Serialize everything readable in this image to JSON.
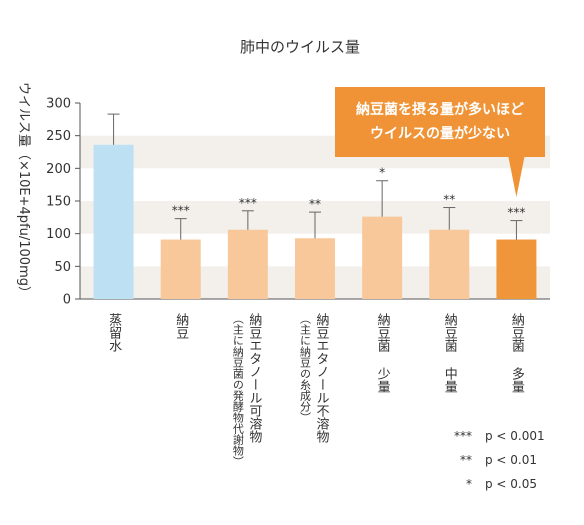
{
  "chart_data": {
    "type": "bar",
    "title": "肺中のウイルス量",
    "ylabel": "ウイルス量（×10E+4pfu/100mg）",
    "ylim": [
      0,
      300
    ],
    "yticks": [
      0,
      50,
      100,
      150,
      200,
      250,
      300
    ],
    "categories": [
      {
        "main": "蒸留水",
        "sub": ""
      },
      {
        "main": "納豆",
        "sub": ""
      },
      {
        "main": "納豆エタノール可溶物",
        "sub": "（主に納豆菌の発酵物代謝物）"
      },
      {
        "main": "納豆エタノール不溶物",
        "sub": "（主に納豆の糸成分）"
      },
      {
        "main": "納豆菌 少量",
        "sub": ""
      },
      {
        "main": "納豆菌 中量",
        "sub": ""
      },
      {
        "main": "納豆菌 多量",
        "sub": ""
      }
    ],
    "values": [
      236,
      91,
      106,
      93,
      126,
      106,
      91
    ],
    "errors": [
      47,
      32,
      29,
      40,
      55,
      34,
      29
    ],
    "significance": [
      "",
      "***",
      "***",
      "**",
      "*",
      "**",
      "***"
    ],
    "colors": [
      "#bde0f2",
      "#f8c89a",
      "#f8c89a",
      "#f8c89a",
      "#f8c89a",
      "#f8c89a",
      "#f0963a"
    ],
    "band_color": "#f3efea",
    "callout": {
      "lines": [
        "納豆菌を摂る量が多いほど",
        "ウイルスの量が少ない"
      ],
      "color": "#ef9336"
    },
    "legend": [
      {
        "mark": "***",
        "text": "p < 0.001"
      },
      {
        "mark": "**",
        "text": "p < 0.01"
      },
      {
        "mark": "*",
        "text": "p < 0.05"
      }
    ]
  }
}
